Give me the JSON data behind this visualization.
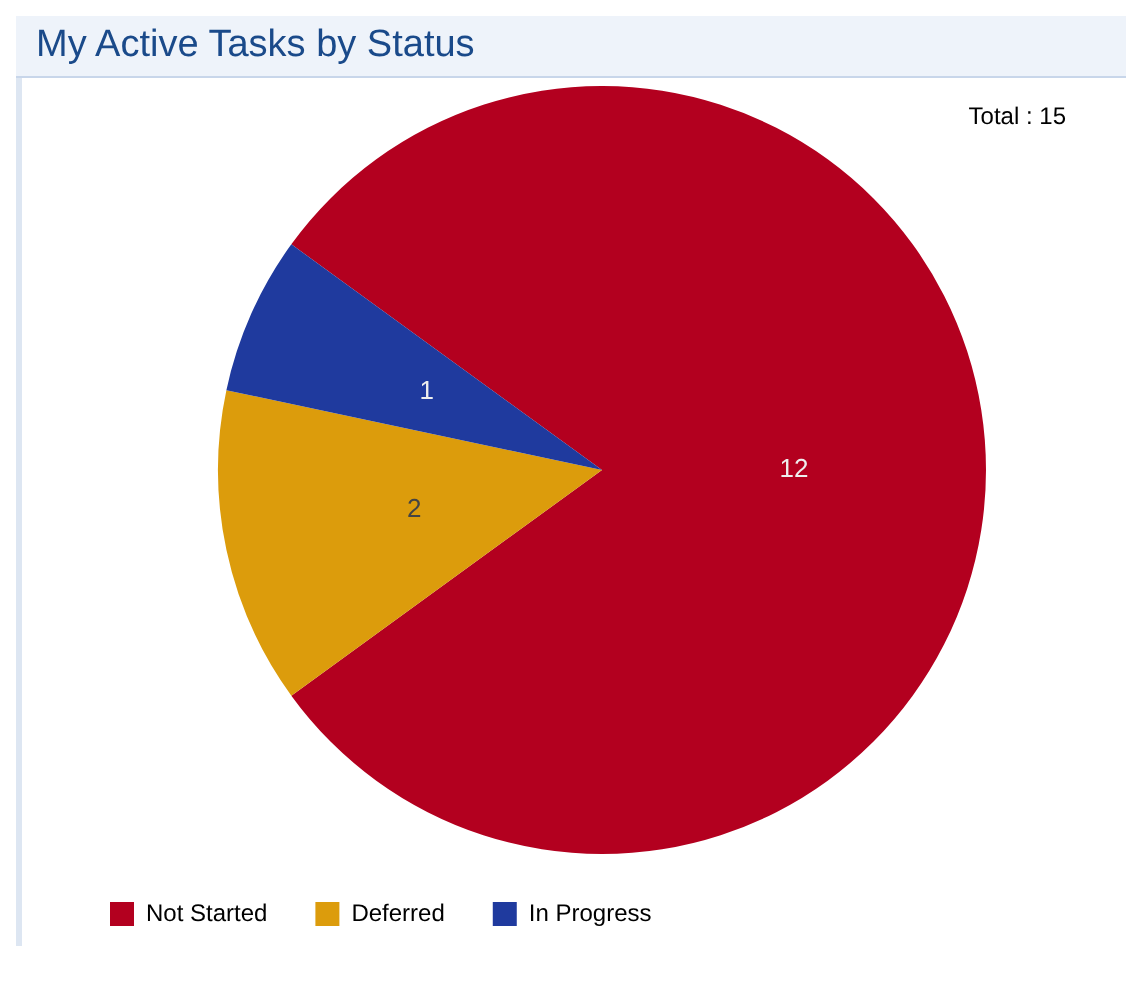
{
  "chart_data": {
    "type": "pie",
    "title": "My Active Tasks by Status",
    "categories": [
      "Not Started",
      "Deferred",
      "In Progress"
    ],
    "values": [
      12,
      2,
      1
    ],
    "colors": [
      "#b3001f",
      "#dc9c0c",
      "#1f3a9e"
    ],
    "data_labels": true,
    "legend": "bottom",
    "annotations": [
      "Total : 15"
    ]
  }
}
